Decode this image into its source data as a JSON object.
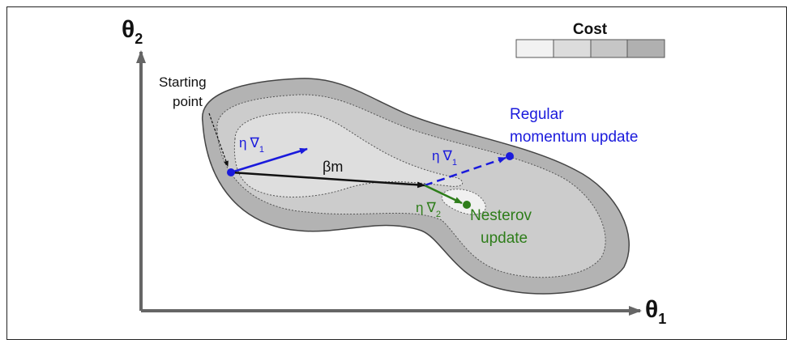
{
  "axes": {
    "x_label": "θ",
    "x_sub": "1",
    "y_label": "θ",
    "y_sub": "2"
  },
  "legend": {
    "title": "Cost",
    "colors": [
      "#f2f2f2",
      "#dcdcdc",
      "#c6c6c6",
      "#b0b0b0"
    ]
  },
  "regions": {
    "outer_color": "#b3b3b3",
    "middle_color": "#cccccc",
    "inner_color": "#dedede",
    "core_color": "#f0f0f0"
  },
  "labels": {
    "start": [
      "Starting",
      "point"
    ],
    "momentum": "βm",
    "grad_start_eta": "η",
    "grad_start_nabla": "∇",
    "grad_start_sub": "1",
    "grad_reg_eta": "η",
    "grad_reg_nabla": "∇",
    "grad_reg_sub": "1",
    "grad_nest_eta": "η",
    "grad_nest_nabla": "∇",
    "grad_nest_sub": "2",
    "regular": [
      "Regular",
      "momentum update"
    ],
    "nesterov": [
      "Nesterov",
      "update"
    ]
  },
  "colors": {
    "blue": "#1a1adc",
    "green": "#2e7d1a",
    "black": "#111111",
    "axis": "#555555"
  }
}
